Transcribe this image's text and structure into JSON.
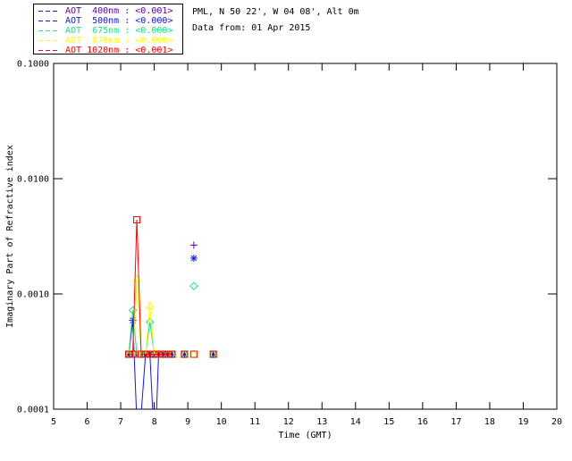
{
  "header": {
    "location_line": "PML, N 50 22', W 04 08', Alt 0m",
    "date_line": "Data from: 01 Apr 2015"
  },
  "legend": {
    "items": [
      {
        "label": "AOT  400nm : <0.001>"
      },
      {
        "label": "AOT  500nm : <0.000>"
      },
      {
        "label": "AOT  675nm : <0.000>"
      },
      {
        "label": "AOT  870nm : <0.000>"
      },
      {
        "label": "AOT 1020nm : <0.001>"
      }
    ]
  },
  "chart_data": {
    "type": "line",
    "title": "",
    "xlabel": "Time (GMT)",
    "ylabel": "Imaginary Part of Refractive index",
    "x_range": [
      5,
      20
    ],
    "y_range": [
      0.0001,
      0.1
    ],
    "y_scale": "log",
    "grid": false,
    "x_ticks": [
      5,
      6,
      7,
      8,
      9,
      10,
      11,
      12,
      13,
      14,
      15,
      16,
      17,
      18,
      19,
      20
    ],
    "y_ticks": [
      {
        "value": 0.1,
        "label": "0.1000"
      },
      {
        "value": 0.01,
        "label": "0.0100"
      },
      {
        "value": 0.001,
        "label": "0.0010"
      },
      {
        "value": 0.0001,
        "label": "0.0001"
      }
    ],
    "series": [
      {
        "name": "AOT 400nm",
        "wavelength_nm": 400,
        "color": "#5a00aa",
        "marker": "plus",
        "line": [
          [
            7.24,
            0.0003
          ],
          [
            7.36,
            0.0003
          ],
          [
            7.48,
            0.0003
          ],
          [
            7.61,
            0.0003
          ],
          [
            7.74,
            0.0003
          ],
          [
            7.87,
            0.0003
          ],
          [
            8.0,
            0.0003
          ],
          [
            8.13,
            0.0003
          ],
          [
            8.26,
            0.0003
          ],
          [
            8.4,
            0.0003
          ],
          [
            8.53,
            0.0003
          ]
        ],
        "points": [
          [
            7.24,
            0.0003
          ],
          [
            7.36,
            0.0003
          ],
          [
            7.48,
            0.0003
          ],
          [
            7.61,
            0.0003
          ],
          [
            7.74,
            0.0003
          ],
          [
            7.87,
            0.0003
          ],
          [
            8.0,
            0.0003
          ],
          [
            8.13,
            0.0003
          ],
          [
            8.26,
            0.0003
          ],
          [
            8.4,
            0.0003
          ],
          [
            8.53,
            0.0003
          ],
          [
            8.9,
            0.0003
          ],
          [
            9.18,
            0.00265
          ],
          [
            9.76,
            0.0003
          ]
        ]
      },
      {
        "name": "AOT 500nm",
        "wavelength_nm": 500,
        "color": "#1414e8",
        "marker": "asterisk",
        "line": [
          [
            7.24,
            0.0003
          ],
          [
            7.36,
            0.00059
          ],
          [
            7.52,
            4e-05
          ],
          [
            7.74,
            0.0003
          ],
          [
            7.87,
            0.0003
          ],
          [
            8.02,
            4e-05
          ],
          [
            8.13,
            0.0003
          ],
          [
            8.26,
            0.0003
          ],
          [
            8.4,
            0.0003
          ],
          [
            8.53,
            0.0003
          ]
        ],
        "points": [
          [
            7.24,
            0.0003
          ],
          [
            7.36,
            0.00059
          ],
          [
            7.74,
            0.0003
          ],
          [
            7.87,
            0.0003
          ],
          [
            8.13,
            0.0003
          ],
          [
            8.26,
            0.0003
          ],
          [
            8.4,
            0.0003
          ],
          [
            8.53,
            0.0003
          ],
          [
            8.9,
            0.0003
          ],
          [
            9.18,
            0.00204
          ],
          [
            9.76,
            0.0003
          ]
        ]
      },
      {
        "name": "AOT 675nm",
        "wavelength_nm": 675,
        "color": "#1ae687",
        "marker": "diamond",
        "line": [
          [
            7.24,
            0.0003
          ],
          [
            7.36,
            0.00072
          ],
          [
            7.48,
            0.0003
          ],
          [
            7.61,
            0.0003
          ],
          [
            7.74,
            0.0003
          ],
          [
            7.87,
            0.00057
          ],
          [
            8.0,
            0.0003
          ],
          [
            8.13,
            0.0003
          ],
          [
            8.26,
            0.0003
          ],
          [
            8.4,
            0.0003
          ],
          [
            8.53,
            0.0003
          ]
        ],
        "points": [
          [
            7.24,
            0.0003
          ],
          [
            7.36,
            0.00072
          ],
          [
            7.48,
            0.0003
          ],
          [
            7.61,
            0.0003
          ],
          [
            7.74,
            0.0003
          ],
          [
            7.87,
            0.00057
          ],
          [
            8.0,
            0.0003
          ],
          [
            8.13,
            0.0003
          ],
          [
            8.26,
            0.0003
          ],
          [
            8.4,
            0.0003
          ],
          [
            8.53,
            0.0003
          ],
          [
            8.9,
            0.0003
          ],
          [
            9.18,
            0.00117
          ],
          [
            9.76,
            0.0003
          ]
        ]
      },
      {
        "name": "AOT 870nm",
        "wavelength_nm": 870,
        "color": "#ffff00",
        "marker": "triangle",
        "line": [
          [
            7.24,
            0.0003
          ],
          [
            7.36,
            0.0003
          ],
          [
            7.48,
            0.00135
          ],
          [
            7.61,
            0.0003
          ],
          [
            7.74,
            0.0003
          ],
          [
            7.87,
            0.00079
          ],
          [
            8.0,
            0.0003
          ],
          [
            8.13,
            0.0003
          ],
          [
            8.26,
            0.0003
          ],
          [
            8.4,
            0.0003
          ],
          [
            8.53,
            0.0003
          ]
        ],
        "points": [
          [
            7.24,
            0.0003
          ],
          [
            7.36,
            0.0003
          ],
          [
            7.48,
            0.00135
          ],
          [
            7.61,
            0.0003
          ],
          [
            7.74,
            0.0003
          ],
          [
            7.87,
            0.00079
          ],
          [
            8.0,
            0.0003
          ],
          [
            8.13,
            0.0003
          ],
          [
            8.26,
            0.0003
          ],
          [
            8.4,
            0.0003
          ],
          [
            8.53,
            0.0003
          ],
          [
            8.9,
            0.0003
          ],
          [
            9.18,
            0.0003
          ],
          [
            9.76,
            0.0003
          ]
        ]
      },
      {
        "name": "AOT 1020nm",
        "wavelength_nm": 1020,
        "color": "#ff0000",
        "marker": "square",
        "line": [
          [
            7.24,
            0.0003
          ],
          [
            7.36,
            0.0003
          ],
          [
            7.48,
            0.0044
          ],
          [
            7.61,
            0.0003
          ],
          [
            7.74,
            0.0003
          ],
          [
            7.87,
            0.0003
          ],
          [
            8.0,
            0.0003
          ],
          [
            8.13,
            0.0003
          ],
          [
            8.26,
            0.0003
          ],
          [
            8.4,
            0.0003
          ],
          [
            8.53,
            0.0003
          ]
        ],
        "points": [
          [
            7.24,
            0.0003
          ],
          [
            7.36,
            0.0003
          ],
          [
            7.48,
            0.0044
          ],
          [
            7.61,
            0.0003
          ],
          [
            7.74,
            0.0003
          ],
          [
            7.87,
            0.0003
          ],
          [
            8.0,
            0.0003
          ],
          [
            8.13,
            0.0003
          ],
          [
            8.26,
            0.0003
          ],
          [
            8.4,
            0.0003
          ],
          [
            8.53,
            0.0003
          ],
          [
            8.9,
            0.0003
          ],
          [
            9.18,
            0.0003
          ],
          [
            9.76,
            0.0003
          ]
        ]
      }
    ]
  }
}
